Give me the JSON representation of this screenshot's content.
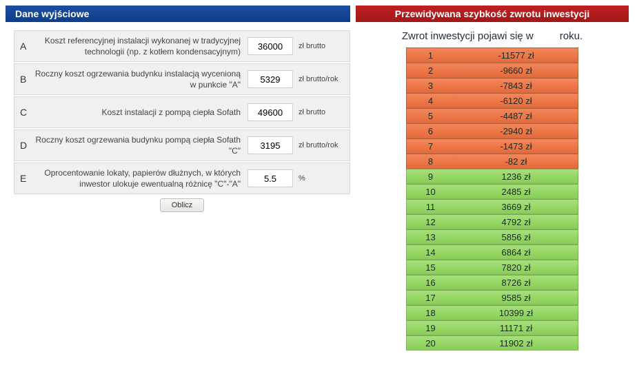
{
  "left": {
    "header": "Dane wyjściowe",
    "rows": [
      {
        "letter": "A",
        "desc": "Koszt referencyjnej instalacji wykonanej w tradycyjnej technologii (np. z kotłem kondensacyjnym)",
        "value": "36000",
        "unit": "zł brutto"
      },
      {
        "letter": "B",
        "desc": "Roczny koszt ogrzewania budynku instalacją wycenioną w punkcie \"A\"",
        "value": "5329",
        "unit": "zł brutto/rok"
      },
      {
        "letter": "C",
        "desc": "Koszt instalacji z pompą ciepła Sofath",
        "value": "49600",
        "unit": "zł brutto"
      },
      {
        "letter": "D",
        "desc": "Roczny koszt ogrzewania budynku pompą ciepła Sofath \"C\"",
        "value": "3195",
        "unit": "zł brutto/rok"
      },
      {
        "letter": "E",
        "desc": "Oprocentowanie lokaty, papierów dłużnych, w których inwestor ulokuje ewentualną różnicę \"C\"-\"A\"",
        "value": "5.5",
        "unit": "%"
      }
    ],
    "calc_label": "Oblicz"
  },
  "right": {
    "header": "Przewidywana szybkość zwrotu inwestycji",
    "sentence_prefix": "Zwrot inwestycji pojawi się w",
    "sentence_suffix": "roku.",
    "colors": {
      "negative_top": "#f2875a",
      "negative_bottom": "#e86a3a",
      "positive_top": "#a6e07a",
      "positive_bottom": "#88cf55"
    },
    "rows": [
      {
        "year": "1",
        "value": "-11577 zł",
        "positive": false
      },
      {
        "year": "2",
        "value": "-9660 zł",
        "positive": false
      },
      {
        "year": "3",
        "value": "-7843 zł",
        "positive": false
      },
      {
        "year": "4",
        "value": "-6120 zł",
        "positive": false
      },
      {
        "year": "5",
        "value": "-4487 zł",
        "positive": false
      },
      {
        "year": "6",
        "value": "-2940 zł",
        "positive": false
      },
      {
        "year": "7",
        "value": "-1473 zł",
        "positive": false
      },
      {
        "year": "8",
        "value": "-82 zł",
        "positive": false
      },
      {
        "year": "9",
        "value": "1236 zł",
        "positive": true
      },
      {
        "year": "10",
        "value": "2485 zł",
        "positive": true
      },
      {
        "year": "11",
        "value": "3669 zł",
        "positive": true
      },
      {
        "year": "12",
        "value": "4792 zł",
        "positive": true
      },
      {
        "year": "13",
        "value": "5856 zł",
        "positive": true
      },
      {
        "year": "14",
        "value": "6864 zł",
        "positive": true
      },
      {
        "year": "15",
        "value": "7820 zł",
        "positive": true
      },
      {
        "year": "16",
        "value": "8726 zł",
        "positive": true
      },
      {
        "year": "17",
        "value": "9585 zł",
        "positive": true
      },
      {
        "year": "18",
        "value": "10399 zł",
        "positive": true
      },
      {
        "year": "19",
        "value": "11171 zł",
        "positive": true
      },
      {
        "year": "20",
        "value": "11902 zł",
        "positive": true
      }
    ]
  }
}
